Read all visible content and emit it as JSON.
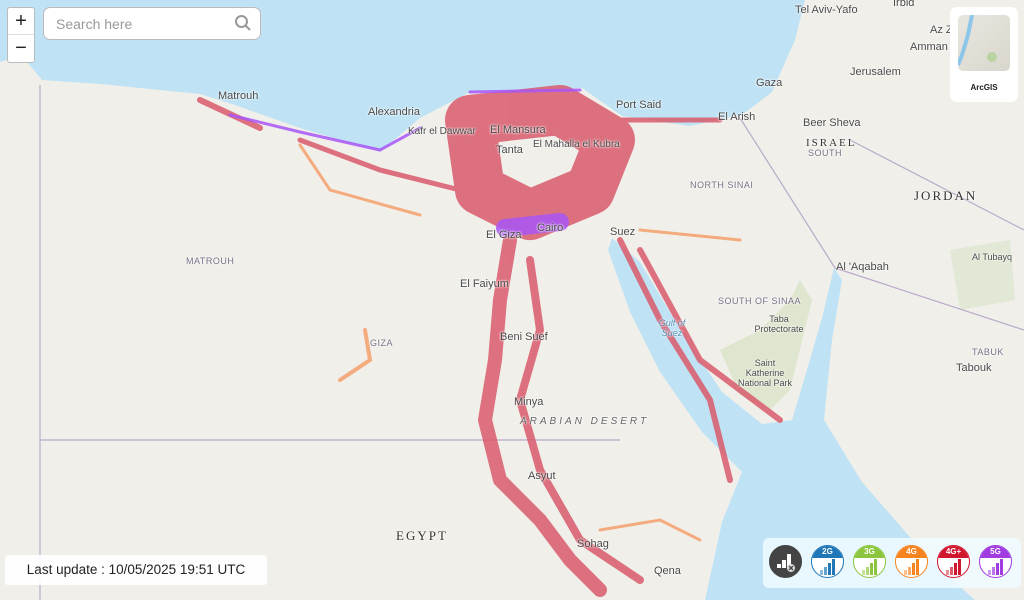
{
  "zoom": {
    "in_label": "+",
    "out_label": "−"
  },
  "search": {
    "placeholder": "Search here",
    "icon": "search-icon"
  },
  "basemap": {
    "label": "ArcGIS"
  },
  "status": {
    "last_update": "Last update : 10/05/2025 19:51 UTC"
  },
  "legend": {
    "all_icon": "signal-off-icon",
    "items": [
      {
        "label": "2G",
        "color": "#1f77b8"
      },
      {
        "label": "3G",
        "color": "#8cc63f"
      },
      {
        "label": "4G",
        "color": "#f7841e"
      },
      {
        "label": "4G+",
        "color": "#d1172e"
      },
      {
        "label": "5G",
        "color": "#a03ce0"
      }
    ]
  },
  "colors": {
    "sea": "#bfe3f5",
    "land": "#f1efea",
    "coverage": "#d95b6c",
    "coverage_5g": "#a855f7",
    "coverage_4g": "#f59a62"
  },
  "map_labels": {
    "tel_aviv": "Tel Aviv-Yafo",
    "irbid": "Irbid",
    "az_zarqa": "Az Zar",
    "amman": "Amman",
    "jerusalem": "Jerusalem",
    "gaza": "Gaza",
    "beer_sheva": "Beer Sheva",
    "israel": "ISRAEL",
    "south": "SOUTH",
    "jordan": "JORDAN",
    "matrouh_city": "Matrouh",
    "alexandria": "Alexandria",
    "port_said": "Port Said",
    "el_arish": "El Arish",
    "north_sinai": "NORTH SINAI",
    "matrouh_gov": "MATROUH",
    "cairo": "Cairo",
    "el_giza": "El Giza",
    "suez": "Suez",
    "el_mansura": "El Mansura",
    "el_mahalla": "El Mahalla el Kubra",
    "tanta": "Tanta",
    "kafr_dawwar": "Kafr el Dawwar",
    "el_faiyum": "El Faiyum",
    "beni_suef": "Beni Suef",
    "minya": "Minya",
    "arabian_desert": "ARABIAN DESERT",
    "south_sinaa": "SOUTH OF SINAA",
    "taba": "Taba Protectorate",
    "gulf_suez": "Gulf of Suez",
    "st_katherine": "Saint Katherine National Park",
    "aqabah": "Al 'Aqabah",
    "tubayq": "Al Tubayq",
    "tabuk_gov": "TABUK",
    "tabouk": "Tabouk",
    "egypt": "EGYPT",
    "asyut": "Asyut",
    "sohag": "Sohag",
    "qena": "Qena",
    "giza_gov": "GIZA"
  }
}
